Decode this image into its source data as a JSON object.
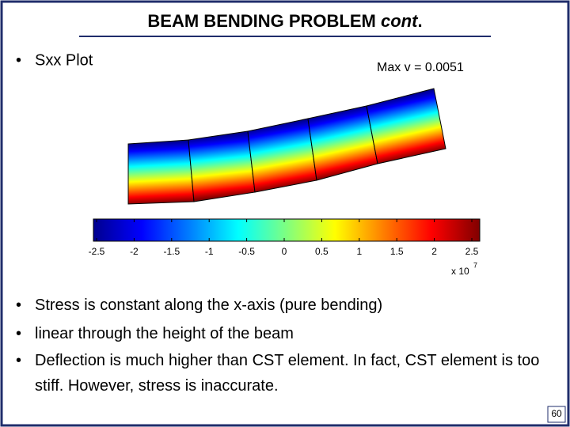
{
  "header": {
    "title": "BEAM BENDING PROBLEM",
    "title_italic": "cont",
    "title_end": "."
  },
  "plot": {
    "bullet": "Sxx Plot",
    "annotation": "Max v = 0.0051",
    "colorbar": {
      "tick_labels": [
        "-2.5",
        "-2",
        "-1.5",
        "-1",
        "-0.5",
        "0",
        "0.5",
        "1",
        "1.5",
        "2",
        "2.5"
      ],
      "scale_base": "x 10",
      "scale_exponent": "7"
    }
  },
  "bullets": [
    "Stress is constant along the x-axis (pure bending)",
    "linear through the height of the beam",
    "Deflection is much higher than CST element. In fact, CST element is too stiff. However, stress is inaccurate."
  ],
  "footer": {
    "page_number": "60"
  }
}
